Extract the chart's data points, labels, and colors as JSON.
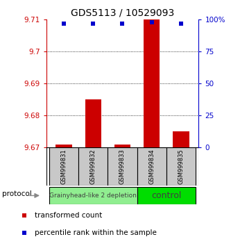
{
  "title": "GDS5113 / 10529093",
  "samples": [
    "GSM999831",
    "GSM999832",
    "GSM999833",
    "GSM999834",
    "GSM999835"
  ],
  "red_values": [
    9.671,
    9.685,
    9.671,
    9.71,
    9.675
  ],
  "blue_values": [
    97,
    97,
    97,
    98,
    97
  ],
  "ylim_left": [
    9.67,
    9.71
  ],
  "ylim_right": [
    0,
    100
  ],
  "yticks_left": [
    9.67,
    9.68,
    9.69,
    9.7,
    9.71
  ],
  "yticks_right": [
    0,
    25,
    50,
    75,
    100
  ],
  "ytick_labels_left": [
    "9.67",
    "9.68",
    "9.69",
    "9.7",
    "9.71"
  ],
  "ytick_labels_right": [
    "0",
    "25",
    "50",
    "75",
    "100%"
  ],
  "groups": [
    {
      "label": "Grainyhead-like 2 depletion",
      "indices": [
        0,
        1,
        2
      ],
      "color": "#90EE90",
      "text_size": 6.5
    },
    {
      "label": "control",
      "indices": [
        3,
        4
      ],
      "color": "#00DD00",
      "text_size": 9
    }
  ],
  "bar_color": "#CC0000",
  "square_color": "#0000CC",
  "bar_bottom": 9.67,
  "left_axis_color": "#CC0000",
  "right_axis_color": "#0000CC",
  "protocol_label": "protocol",
  "grid_dotted_ticks": [
    9.68,
    9.69,
    9.7
  ]
}
